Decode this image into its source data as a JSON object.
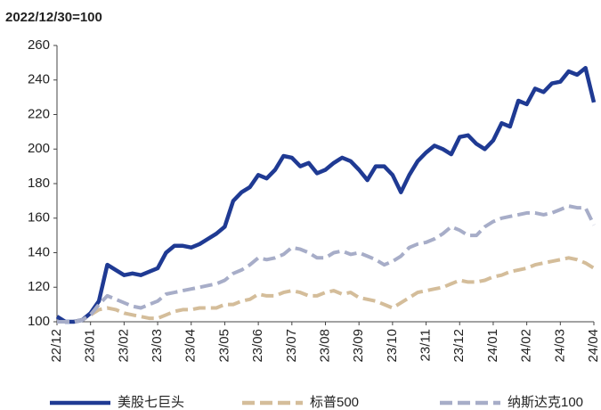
{
  "chart_data": {
    "type": "line",
    "title": "2022/12/30=100",
    "categories": [
      "22/12",
      null,
      null,
      null,
      "23/01",
      null,
      null,
      null,
      "23/02",
      null,
      null,
      null,
      "23/03",
      null,
      null,
      null,
      "23/04",
      null,
      null,
      null,
      "23/05",
      null,
      null,
      null,
      "23/06",
      null,
      null,
      null,
      "23/07",
      null,
      null,
      null,
      "23/08",
      null,
      null,
      null,
      "23/09",
      null,
      null,
      null,
      "23/10",
      null,
      null,
      null,
      "23/11",
      null,
      null,
      null,
      "23/12",
      null,
      null,
      null,
      "24/01",
      null,
      null,
      null,
      "24/02",
      null,
      null,
      null,
      "24/03",
      null,
      null,
      null,
      "24/04"
    ],
    "series": [
      {
        "name": "美股七巨头",
        "color": "#1f3a93",
        "dashed": false,
        "values": [
          103,
          100,
          100,
          101,
          105,
          112,
          133,
          130,
          127,
          128,
          127,
          129,
          131,
          140,
          144,
          144,
          143,
          145,
          148,
          151,
          155,
          170,
          175,
          178,
          185,
          183,
          188,
          196,
          195,
          190,
          192,
          186,
          188,
          192,
          195,
          193,
          188,
          182,
          190,
          190,
          185,
          175,
          185,
          193,
          198,
          202,
          200,
          197,
          207,
          208,
          203,
          200,
          205,
          215,
          213,
          228,
          226,
          235,
          233,
          238,
          239,
          245,
          243,
          247,
          227
        ]
      },
      {
        "name": "标普500",
        "color": "#d4bd9a",
        "dashed": true,
        "values": [
          100,
          100,
          100,
          101,
          104,
          107,
          108,
          107,
          105,
          104,
          103,
          102,
          102,
          104,
          106,
          107,
          107,
          108,
          108,
          108,
          110,
          110,
          112,
          113,
          116,
          115,
          115,
          117,
          118,
          117,
          115,
          115,
          117,
          118,
          116,
          117,
          114,
          113,
          112,
          110,
          108,
          111,
          114,
          117,
          118,
          119,
          120,
          122,
          124,
          123,
          123,
          124,
          126,
          127,
          129,
          130,
          131,
          133,
          134,
          135,
          136,
          137,
          136,
          134,
          131
        ]
      },
      {
        "name": "纳斯达克100",
        "color": "#a7adc8",
        "dashed": true,
        "values": [
          100,
          100,
          100,
          101,
          104,
          110,
          115,
          113,
          111,
          109,
          108,
          110,
          112,
          116,
          117,
          118,
          119,
          120,
          121,
          122,
          124,
          128,
          130,
          133,
          137,
          136,
          137,
          139,
          143,
          142,
          140,
          137,
          137,
          140,
          141,
          139,
          140,
          138,
          136,
          133,
          135,
          138,
          143,
          145,
          146,
          148,
          151,
          155,
          153,
          150,
          150,
          155,
          158,
          160,
          161,
          162,
          163,
          163,
          162,
          163,
          165,
          167,
          166,
          166,
          156
        ]
      }
    ],
    "ylim": [
      100,
      260
    ],
    "yticks": [
      100,
      120,
      140,
      160,
      180,
      200,
      220,
      240,
      260
    ],
    "grid": false,
    "legend": "bottom"
  }
}
